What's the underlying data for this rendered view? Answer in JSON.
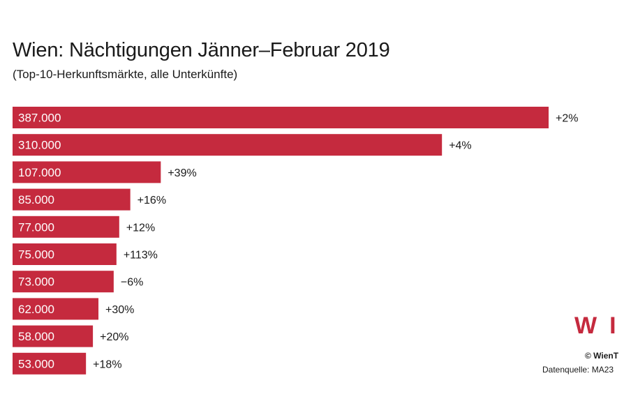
{
  "header": {
    "title": "Wien: Nächtigungen Jänner–Februar 2019",
    "subtitle": "(Top-10-Herkunftsmärkte, alle Unterkünfte)"
  },
  "colors": {
    "bar": "#c52a3e",
    "logo": "#c52a3e"
  },
  "chart_data": {
    "type": "bar",
    "orientation": "horizontal",
    "title": "Wien: Nächtigungen Jänner–Februar 2019",
    "subtitle": "(Top-10-Herkunftsmärkte, alle Unterkünfte)",
    "values": [
      387000,
      310000,
      107000,
      85000,
      77000,
      75000,
      73000,
      62000,
      58000,
      53000
    ],
    "value_labels": [
      "387.000",
      "310.000",
      "107.000",
      "85.000",
      "77.000",
      "75.000",
      "73.000",
      "62.000",
      "58.000",
      "53.000"
    ],
    "change_labels": [
      "+2%",
      "+4%",
      "+39%",
      "+16%",
      "+12%",
      "+113%",
      "−6%",
      "+30%",
      "+20%",
      "+18%"
    ],
    "xlim": [
      0,
      400000
    ],
    "grid": false,
    "legend": "none"
  },
  "branding": {
    "logo_text": "WI",
    "copyright": "© WienT",
    "source": "Datenquelle: MA23"
  }
}
